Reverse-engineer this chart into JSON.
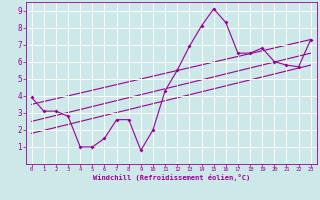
{
  "xlabel": "Windchill (Refroidissement éolien,°C)",
  "background_color": "#cce8e8",
  "line_color": "#990099",
  "grid_color": "#ffffff",
  "xlim": [
    -0.5,
    23.5
  ],
  "ylim": [
    0,
    9.5
  ],
  "xticks": [
    0,
    1,
    2,
    3,
    4,
    5,
    6,
    7,
    8,
    9,
    10,
    11,
    12,
    13,
    14,
    15,
    16,
    17,
    18,
    19,
    20,
    21,
    22,
    23
  ],
  "yticks": [
    1,
    2,
    3,
    4,
    5,
    6,
    7,
    8,
    9
  ],
  "data_x": [
    0,
    1,
    2,
    3,
    4,
    5,
    6,
    7,
    8,
    9,
    10,
    11,
    12,
    13,
    14,
    15,
    16,
    17,
    18,
    19,
    20,
    21,
    22,
    23
  ],
  "data_y": [
    3.9,
    3.1,
    3.1,
    2.8,
    1.0,
    1.0,
    1.5,
    2.6,
    2.6,
    0.8,
    2.0,
    4.3,
    5.5,
    6.9,
    8.1,
    9.1,
    8.3,
    6.5,
    6.5,
    6.8,
    6.0,
    5.8,
    5.7,
    7.3
  ],
  "trend1_x": [
    0,
    23
  ],
  "trend1_y": [
    3.5,
    7.3
  ],
  "trend2_x": [
    0,
    23
  ],
  "trend2_y": [
    2.5,
    6.5
  ],
  "trend3_x": [
    0,
    23
  ],
  "trend3_y": [
    1.8,
    5.8
  ]
}
